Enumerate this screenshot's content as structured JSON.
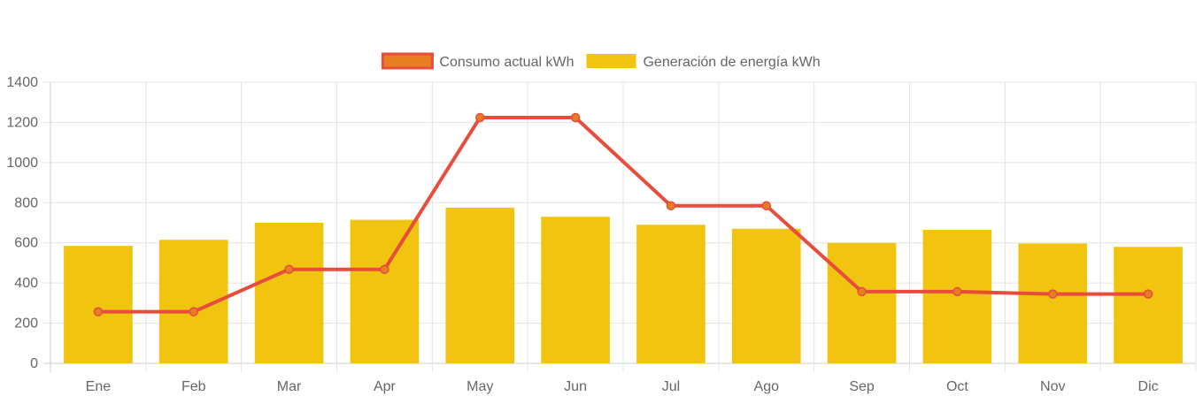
{
  "chart_data": {
    "type": "bar",
    "categories": [
      "Ene",
      "Feb",
      "Mar",
      "Apr",
      "May",
      "Jun",
      "Jul",
      "Ago",
      "Sep",
      "Oct",
      "Nov",
      "Dic"
    ],
    "series": [
      {
        "name": "Consumo actual kWh",
        "type": "line",
        "values": [
          257,
          257,
          468,
          468,
          1224,
          1224,
          785,
          785,
          357,
          357,
          345,
          345
        ],
        "color": "#e74c3c",
        "legend_fill": "#e67e22"
      },
      {
        "name": "Generación de energía kWh",
        "type": "bar",
        "values": [
          585,
          615,
          700,
          715,
          775,
          730,
          690,
          670,
          600,
          665,
          597,
          580
        ],
        "color": "#f1c40f"
      }
    ],
    "title": "",
    "xlabel": "",
    "ylabel": "",
    "ylim": [
      0,
      1400
    ],
    "yticks": [
      0,
      200,
      400,
      600,
      800,
      1000,
      1200,
      1400
    ],
    "grid": true,
    "legend_position": "top-center"
  }
}
